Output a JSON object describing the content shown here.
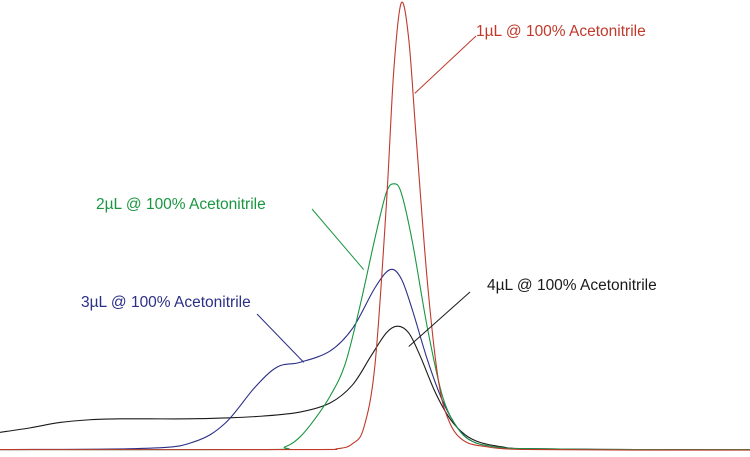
{
  "chart_data": {
    "type": "line",
    "title": "",
    "xlabel": "",
    "ylabel": "",
    "xlim": [
      0,
      100
    ],
    "ylim": [
      0,
      100
    ],
    "grid": false,
    "legend": "none",
    "series": [
      {
        "label": "1µL @ 100% Acetonitrile",
        "color": "#c0392b",
        "points": [
          [
            0,
            1.2
          ],
          [
            40,
            1.2
          ],
          [
            45,
            1.4
          ],
          [
            47,
            2.5
          ],
          [
            48.5,
            6
          ],
          [
            50,
            20
          ],
          [
            51.5,
            55
          ],
          [
            52.5,
            85
          ],
          [
            53.5,
            100
          ],
          [
            54.5,
            92
          ],
          [
            55.5,
            70
          ],
          [
            57,
            38
          ],
          [
            58.5,
            16
          ],
          [
            60,
            7
          ],
          [
            62,
            3
          ],
          [
            65,
            1.8
          ],
          [
            68,
            1.3
          ],
          [
            72,
            1.2
          ],
          [
            85,
            1.1
          ],
          [
            100,
            1.1
          ]
        ]
      },
      {
        "label": "2µL @ 100% Acetonitrile",
        "color": "#1a9641",
        "points": [
          [
            0,
            1.2
          ],
          [
            35,
            1.2
          ],
          [
            38,
            1.8
          ],
          [
            40,
            4
          ],
          [
            42,
            8
          ],
          [
            44,
            13
          ],
          [
            46,
            20
          ],
          [
            48,
            33
          ],
          [
            50,
            48
          ],
          [
            51.5,
            58
          ],
          [
            52.5,
            60
          ],
          [
            53.5,
            58
          ],
          [
            55,
            47
          ],
          [
            57,
            28
          ],
          [
            59,
            13
          ],
          [
            61,
            6
          ],
          [
            63,
            3
          ],
          [
            66,
            1.8
          ],
          [
            70,
            1.4
          ],
          [
            85,
            1.2
          ],
          [
            100,
            1.2
          ]
        ]
      },
      {
        "label": "3µL @ 100% Acetonitrile",
        "color": "#2b2f86",
        "points": [
          [
            0,
            1.2
          ],
          [
            20,
            1.5
          ],
          [
            26,
            3
          ],
          [
            30,
            7
          ],
          [
            34,
            15
          ],
          [
            37,
            19.5
          ],
          [
            40,
            20.5
          ],
          [
            44,
            23
          ],
          [
            47,
            28
          ],
          [
            50,
            37
          ],
          [
            52,
            41
          ],
          [
            53.5,
            39
          ],
          [
            55,
            32
          ],
          [
            57,
            21
          ],
          [
            59,
            12
          ],
          [
            61,
            6
          ],
          [
            63,
            3
          ],
          [
            66,
            1.8
          ],
          [
            70,
            1.4
          ],
          [
            85,
            1.2
          ],
          [
            100,
            1.2
          ]
        ]
      },
      {
        "label": "4µL @ 100% Acetonitrile",
        "color": "#1a1a1a",
        "points": [
          [
            0,
            5
          ],
          [
            4,
            6
          ],
          [
            8,
            7.2
          ],
          [
            12,
            7.8
          ],
          [
            16,
            8
          ],
          [
            20,
            8
          ],
          [
            25,
            8
          ],
          [
            30,
            8.2
          ],
          [
            35,
            8.6
          ],
          [
            40,
            9.5
          ],
          [
            44,
            11.5
          ],
          [
            47,
            15.5
          ],
          [
            49.5,
            22
          ],
          [
            51.5,
            27
          ],
          [
            53,
            28.5
          ],
          [
            54.5,
            27
          ],
          [
            56,
            22
          ],
          [
            58,
            14
          ],
          [
            60,
            8
          ],
          [
            62,
            4.5
          ],
          [
            64,
            2.8
          ],
          [
            67,
            1.8
          ],
          [
            70,
            1.4
          ],
          [
            85,
            1.2
          ],
          [
            100,
            1.2
          ]
        ]
      }
    ],
    "annotations": [
      {
        "text": "1µL @ 100% Acetonitrile",
        "series": 0,
        "point": [
          55.3,
          80
        ]
      },
      {
        "text": "2µL @ 100% Acetonitrile",
        "series": 1,
        "point": [
          48.5,
          41
        ]
      },
      {
        "text": "3µL @ 100% Acetonitrile",
        "series": 2,
        "point": [
          40.5,
          20.5
        ]
      },
      {
        "text": "4µL @ 100% Acetonitrile",
        "series": 3,
        "point": [
          54.5,
          24
        ]
      }
    ]
  }
}
